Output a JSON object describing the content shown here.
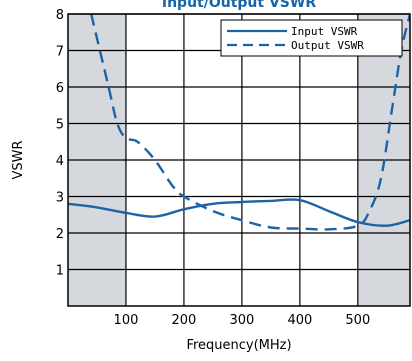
{
  "chart_data": {
    "type": "line",
    "title": "Input/Output VSWR",
    "xlabel": "Frequency(MHz)",
    "ylabel": "VSWR",
    "xlim": [
      0,
      590
    ],
    "ylim": [
      0,
      8
    ],
    "xticks": [
      100,
      200,
      300,
      400,
      500
    ],
    "yticks": [
      1,
      2,
      3,
      4,
      5,
      6,
      7,
      8
    ],
    "grid": true,
    "legend_position": "top-right",
    "shaded_x_ranges": [
      [
        0,
        100
      ],
      [
        500,
        590
      ]
    ],
    "series": [
      {
        "name": "Input VSWR",
        "style": "solid",
        "color": "#1f63a6",
        "x": [
          0,
          50,
          100,
          150,
          200,
          250,
          300,
          350,
          400,
          450,
          500,
          550,
          590
        ],
        "y": [
          2.8,
          2.7,
          2.55,
          2.45,
          2.65,
          2.8,
          2.85,
          2.88,
          2.9,
          2.6,
          2.3,
          2.2,
          2.35
        ]
      },
      {
        "name": "Output VSWR",
        "style": "dashed",
        "color": "#1f63a6",
        "x": [
          40,
          55,
          70,
          85,
          100,
          120,
          150,
          180,
          200,
          250,
          300,
          350,
          400,
          450,
          500,
          520,
          540,
          560,
          575,
          590
        ],
        "y": [
          8.0,
          7.0,
          6.0,
          5.0,
          4.6,
          4.5,
          4.0,
          3.3,
          3.0,
          2.6,
          2.35,
          2.15,
          2.12,
          2.1,
          2.2,
          2.6,
          3.5,
          5.5,
          7.0,
          8.0
        ]
      }
    ]
  },
  "colors": {
    "shade": "#d5d8dd",
    "grid": "#000000",
    "series": "#1f63a6",
    "title": "#1565a8"
  }
}
